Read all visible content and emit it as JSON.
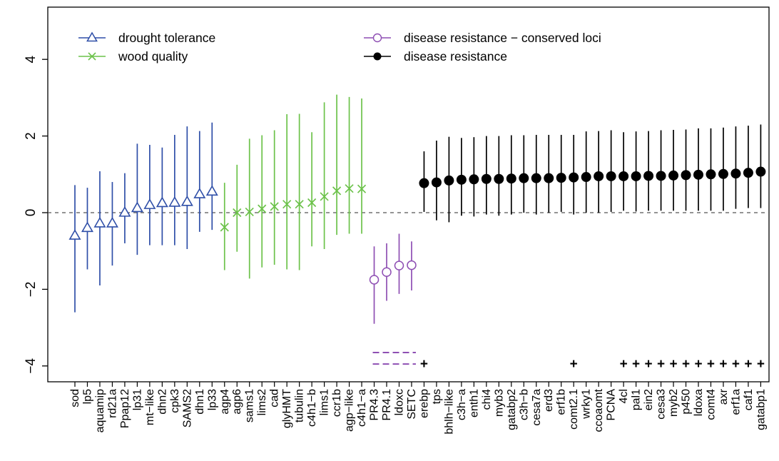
{
  "chart_data": {
    "type": "scatter",
    "ylim": [
      -4.5,
      5.4
    ],
    "yticks": [
      -4,
      -2,
      0,
      2,
      4
    ],
    "ytick_labels": [
      "−4",
      "−2",
      "0",
      "2",
      "4"
    ],
    "reference_line_y": 0,
    "legend_position": "top",
    "legend": [
      {
        "label": "drought tolerance",
        "color": "#2f4fa8",
        "marker": "triangle-open"
      },
      {
        "label": "wood quality",
        "color": "#6cc24a",
        "marker": "x"
      },
      {
        "label": "disease resistance − conserved loci",
        "color": "#8e4fb3",
        "marker": "circle-open"
      },
      {
        "label": "disease resistance",
        "color": "#000000",
        "marker": "circle-filled"
      }
    ],
    "series": [
      {
        "name": "drought tolerance",
        "color": "#2f4fa8",
        "marker": "triangle-open",
        "categories": [
          "sod",
          "lp5",
          "aquamip",
          "rd21a",
          "Ppap12",
          "lp31",
          "mt−like",
          "dhn2",
          "cpk3",
          "SAMS2",
          "dhn1",
          "lp33"
        ],
        "values": [
          -0.6,
          -0.4,
          -0.28,
          -0.28,
          0.0,
          0.12,
          0.2,
          0.25,
          0.26,
          0.28,
          0.48,
          0.55
        ],
        "lower": [
          -2.6,
          -1.48,
          -1.9,
          -1.38,
          -0.8,
          -1.1,
          -0.85,
          -0.85,
          -0.85,
          -0.95,
          -0.5,
          -0.45
        ],
        "upper": [
          0.72,
          0.65,
          1.08,
          0.8,
          1.03,
          1.8,
          1.77,
          1.7,
          2.03,
          2.25,
          2.13,
          2.35
        ]
      },
      {
        "name": "wood quality",
        "color": "#6cc24a",
        "marker": "x",
        "categories": [
          "agp4",
          "agp6",
          "sams1",
          "lims2",
          "cad",
          "glyHMT",
          "tubulin",
          "c4h1−b",
          "lims1",
          "ccr1b",
          "agp−like",
          "c4h1−a"
        ],
        "values": [
          -0.38,
          0.0,
          0.02,
          0.1,
          0.16,
          0.22,
          0.22,
          0.26,
          0.42,
          0.57,
          0.63,
          0.62
        ],
        "lower": [
          -1.5,
          -1.02,
          -1.72,
          -1.43,
          -1.36,
          -1.48,
          -1.5,
          -0.88,
          -0.95,
          -0.58,
          -0.55,
          -0.55
        ],
        "upper": [
          0.78,
          1.25,
          1.93,
          2.02,
          2.15,
          2.57,
          2.58,
          2.1,
          2.88,
          3.08,
          3.02,
          2.98
        ]
      },
      {
        "name": "disease resistance − conserved loci",
        "color": "#8e4fb3",
        "marker": "circle-open",
        "categories": [
          "PR4.3",
          "PR4.1",
          "ldoxc",
          "SETC"
        ],
        "values": [
          -1.75,
          -1.55,
          -1.38,
          -1.37
        ],
        "lower": [
          -2.9,
          -2.3,
          -2.12,
          -2.03
        ],
        "upper": [
          -0.88,
          -0.8,
          -0.55,
          -0.75
        ]
      },
      {
        "name": "disease resistance",
        "color": "#000000",
        "marker": "circle-filled",
        "categories": [
          "erebp",
          "tps",
          "bhlh−like",
          "c3h−a",
          "enth1",
          "chi4",
          "myb3",
          "gatabp2",
          "c3h−b",
          "cesa7a",
          "erd3",
          "erf1b",
          "comt2.1",
          "wrky1",
          "ccoaomt",
          "PCNA",
          "4cl",
          "pal1",
          "ein2",
          "cesa3",
          "myb2",
          "p450",
          "ldoxa",
          "comt4",
          "axr",
          "erf1a",
          "caf1",
          "gatabp1"
        ],
        "values": [
          0.77,
          0.79,
          0.84,
          0.86,
          0.87,
          0.88,
          0.88,
          0.89,
          0.9,
          0.9,
          0.9,
          0.91,
          0.92,
          0.93,
          0.95,
          0.95,
          0.95,
          0.95,
          0.96,
          0.96,
          0.97,
          0.98,
          0.99,
          1.0,
          1.01,
          1.02,
          1.04,
          1.07
        ],
        "lower": [
          0.02,
          -0.2,
          -0.25,
          -0.08,
          -0.1,
          -0.05,
          -0.08,
          -0.05,
          0.0,
          -0.05,
          0.0,
          0.02,
          -0.05,
          0.0,
          0.0,
          0.02,
          0.05,
          0.03,
          0.05,
          0.05,
          0.05,
          0.05,
          0.05,
          0.05,
          0.05,
          0.1,
          0.12,
          0.12
        ],
        "upper": [
          1.6,
          1.88,
          1.98,
          1.95,
          1.97,
          2.0,
          2.0,
          2.02,
          2.02,
          2.03,
          2.03,
          2.03,
          2.03,
          2.12,
          2.13,
          2.15,
          2.1,
          2.12,
          2.13,
          2.15,
          2.16,
          2.17,
          2.2,
          2.2,
          2.22,
          2.25,
          2.27,
          2.3
        ]
      }
    ],
    "significance_markers": {
      "y": -3.95,
      "symbol": "+",
      "color": "#000000",
      "categories": [
        "erebp",
        "comt2.1",
        "4cl",
        "pal1",
        "ein2",
        "cesa3",
        "myb2",
        "p450",
        "ldoxa",
        "comt4",
        "axr",
        "erf1a",
        "caf1",
        "gatabp1"
      ]
    },
    "purple_dashes": {
      "color": "#8e4fb3",
      "y_values": [
        -3.65,
        -3.95
      ],
      "from_category": "PR4.3",
      "to_category": "SETC"
    }
  }
}
